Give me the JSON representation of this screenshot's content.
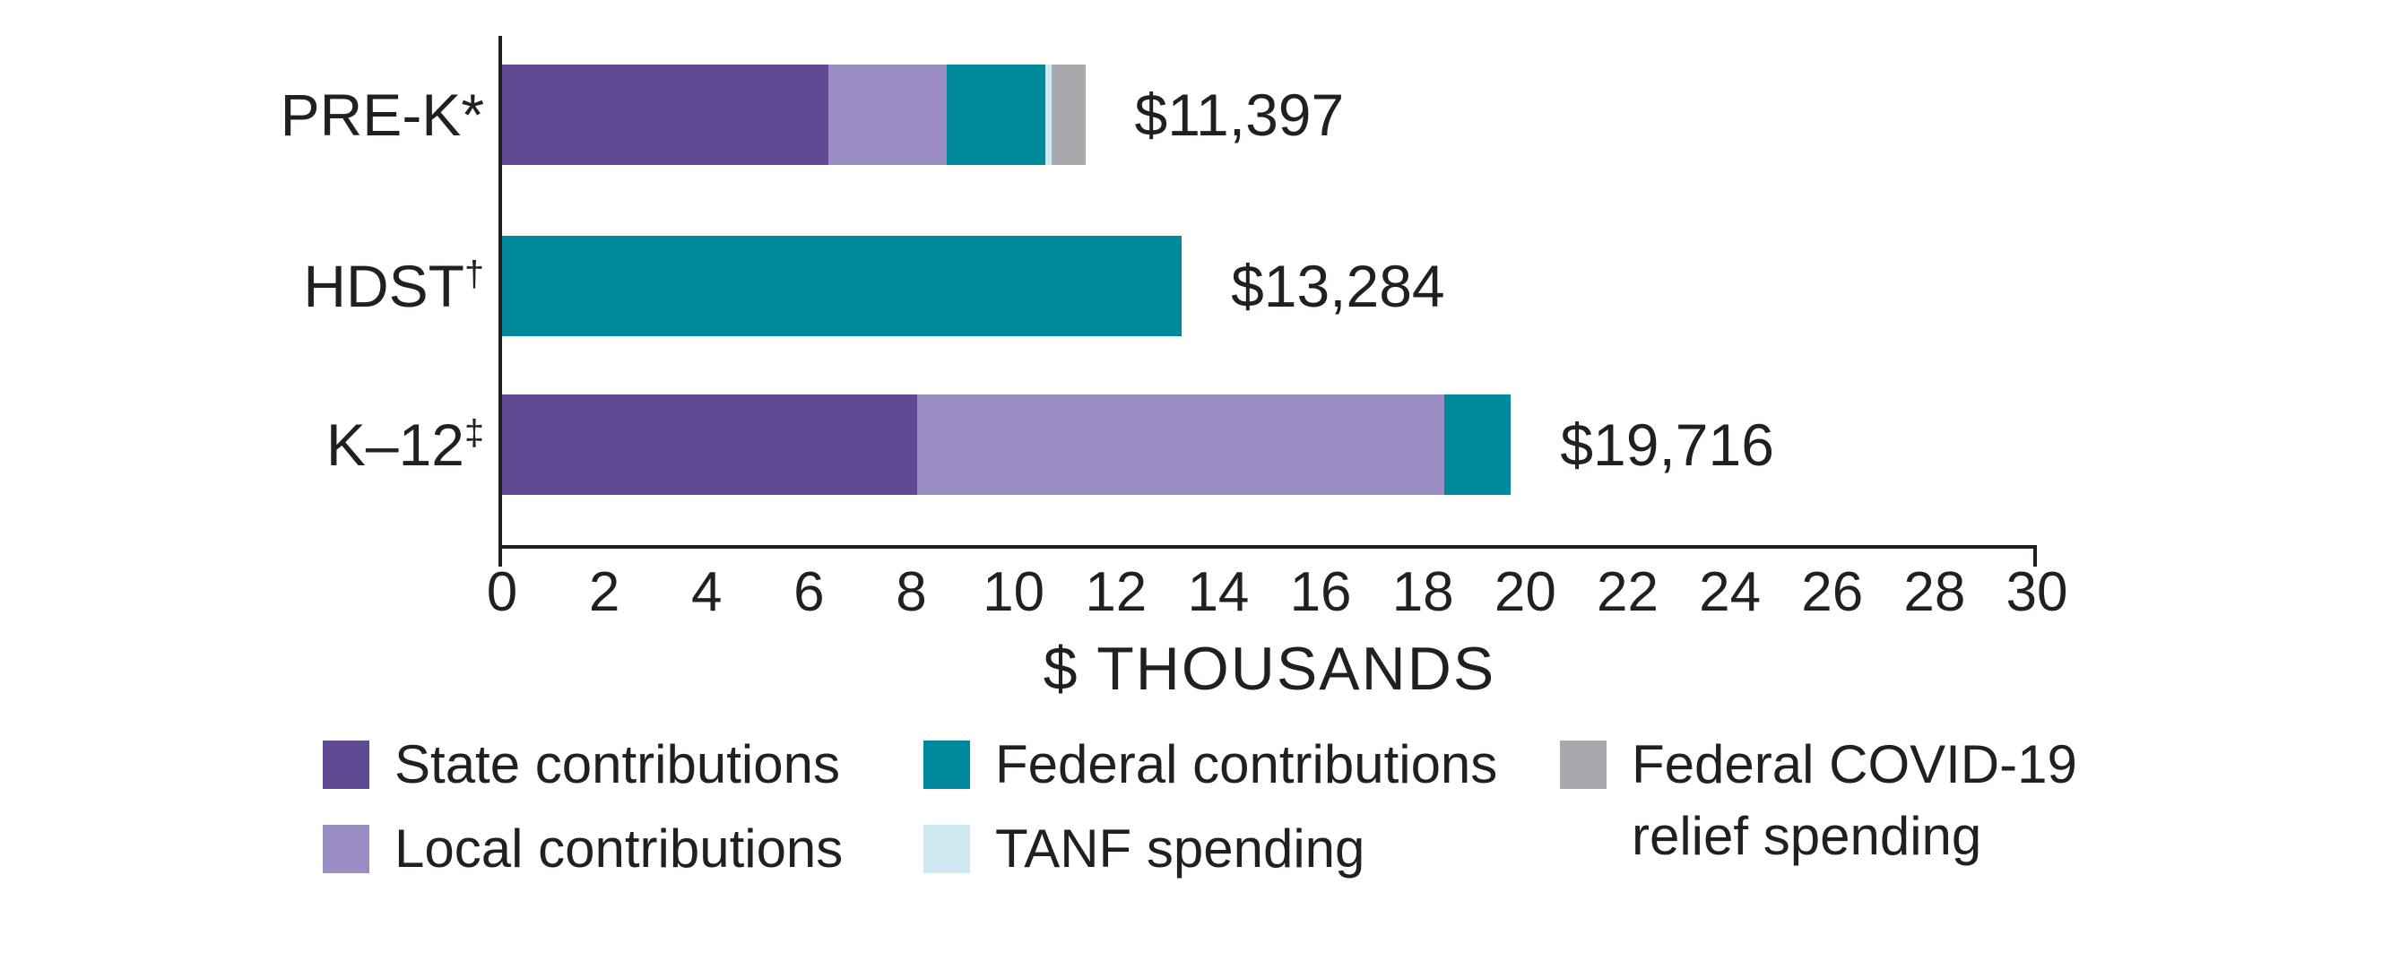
{
  "chart_data": {
    "type": "bar",
    "orientation": "horizontal",
    "stacked": true,
    "title": "",
    "xlabel": "$ THOUSANDS",
    "xlim": [
      0,
      30
    ],
    "xtick_step": 2,
    "xticks": [
      0,
      2,
      4,
      6,
      8,
      10,
      12,
      14,
      16,
      18,
      20,
      22,
      24,
      26,
      28,
      30
    ],
    "unit": "thousands of dollars per child",
    "grid": false,
    "legend_position": "bottom",
    "categories": [
      "PRE-K*",
      "HDST†",
      "K–12‡"
    ],
    "bars": [
      {
        "label": "PRE-K*",
        "sup": "",
        "total": 11.4,
        "total_label": "$11,397",
        "segments": [
          {
            "series": "State contributions",
            "value": 6.38
          },
          {
            "series": "Local contributions",
            "value": 2.31
          },
          {
            "series": "Federal contributions",
            "value": 1.93
          },
          {
            "series": "TANF spending",
            "value": 0.12
          },
          {
            "series": "Federal COVID-19 relief spending",
            "value": 0.66
          }
        ]
      },
      {
        "label": "HDST",
        "sup": "†",
        "total": 13.284,
        "total_label": "$13,284",
        "segments": [
          {
            "series": "Federal contributions",
            "value": 13.284
          }
        ]
      },
      {
        "label": "K–12",
        "sup": "‡",
        "total": 19.716,
        "total_label": "$19,716",
        "segments": [
          {
            "series": "State contributions",
            "value": 8.11
          },
          {
            "series": "Local contributions",
            "value": 10.3
          },
          {
            "series": "Federal contributions",
            "value": 1.31
          }
        ]
      }
    ],
    "legend": [
      {
        "label": "State contributions",
        "lines": [
          "State contributions"
        ],
        "color": "#614A94"
      },
      {
        "label": "Local contributions",
        "lines": [
          "Local contributions"
        ],
        "color": "#9B8CC4"
      },
      {
        "label": "Federal contributions",
        "lines": [
          "Federal contributions"
        ],
        "color": "#00899B"
      },
      {
        "label": "TANF spending",
        "lines": [
          "TANF spending"
        ],
        "color": "#CFE7EE"
      },
      {
        "label": "Federal COVID-19 relief spending",
        "lines": [
          "Federal COVID-19",
          "relief spending"
        ],
        "color": "#A7A9AC"
      }
    ]
  },
  "colors": {
    "text": "#231F20",
    "axis": "#231F20",
    "background": "#FFFFFF"
  }
}
